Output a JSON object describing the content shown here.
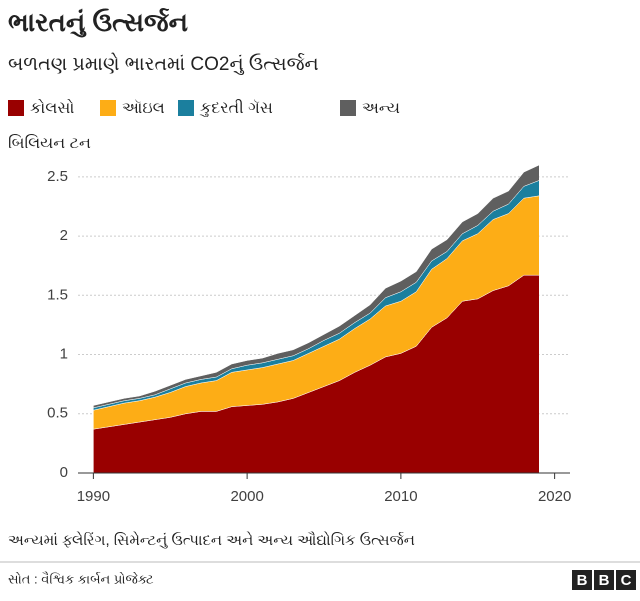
{
  "chart_data": {
    "type": "stacked_area",
    "title": "ભારતનું ઉત્સર્જન",
    "subtitle": "બળતણ પ્રમાણે ભારતમાં CO2નું ઉત્સર્જન",
    "y_label": "બિલિયન ટન",
    "note": "અન્યમાં ફ્લેરિંગ, સિમેન્ટનું ઉત્પાદન અને અન્ય ઔદ્યોગિક ઉત્સર્જન",
    "source": "સોત : વૈશ્વિક કાર્બન પ્રોજેક્ટ",
    "logo": [
      "B",
      "B",
      "C"
    ],
    "x": [
      1990,
      1991,
      1992,
      1993,
      1994,
      1995,
      1996,
      1997,
      1998,
      1999,
      2000,
      2001,
      2002,
      2003,
      2004,
      2005,
      2006,
      2007,
      2008,
      2009,
      2010,
      2011,
      2012,
      2013,
      2014,
      2015,
      2016,
      2017,
      2018,
      2019
    ],
    "series": [
      {
        "name": "કોલસો",
        "color": "#990000",
        "values": [
          0.37,
          0.39,
          0.41,
          0.43,
          0.45,
          0.47,
          0.5,
          0.52,
          0.52,
          0.56,
          0.57,
          0.58,
          0.6,
          0.63,
          0.68,
          0.73,
          0.78,
          0.85,
          0.91,
          0.98,
          1.01,
          1.07,
          1.23,
          1.31,
          1.45,
          1.47,
          1.54,
          1.58,
          1.67,
          1.67
        ]
      },
      {
        "name": "ઑઇલ",
        "color": "#fdad16",
        "values": [
          0.16,
          0.17,
          0.18,
          0.18,
          0.19,
          0.21,
          0.23,
          0.24,
          0.26,
          0.29,
          0.3,
          0.31,
          0.32,
          0.32,
          0.33,
          0.34,
          0.35,
          0.37,
          0.39,
          0.43,
          0.44,
          0.46,
          0.49,
          0.5,
          0.51,
          0.55,
          0.6,
          0.61,
          0.65,
          0.67
        ]
      },
      {
        "name": "કુદરતી ગૅસ",
        "color": "#1b7f9e",
        "values": [
          0.02,
          0.02,
          0.02,
          0.02,
          0.02,
          0.03,
          0.03,
          0.03,
          0.03,
          0.03,
          0.04,
          0.04,
          0.04,
          0.04,
          0.04,
          0.05,
          0.05,
          0.05,
          0.05,
          0.07,
          0.08,
          0.08,
          0.07,
          0.06,
          0.06,
          0.07,
          0.07,
          0.08,
          0.1,
          0.13
        ]
      },
      {
        "name": "અન્ય",
        "color": "#5f5f5f",
        "values": [
          0.02,
          0.02,
          0.02,
          0.02,
          0.03,
          0.03,
          0.03,
          0.03,
          0.04,
          0.04,
          0.04,
          0.04,
          0.05,
          0.05,
          0.05,
          0.05,
          0.06,
          0.06,
          0.07,
          0.08,
          0.09,
          0.09,
          0.1,
          0.1,
          0.1,
          0.1,
          0.11,
          0.11,
          0.12,
          0.13
        ]
      }
    ],
    "xlim": [
      1989,
      2021
    ],
    "xticks": [
      1990,
      2000,
      2010,
      2020
    ],
    "ylim": [
      0,
      2.6
    ],
    "yticks": [
      0,
      0.5,
      1,
      1.5,
      2,
      2.5
    ],
    "grid": true
  }
}
